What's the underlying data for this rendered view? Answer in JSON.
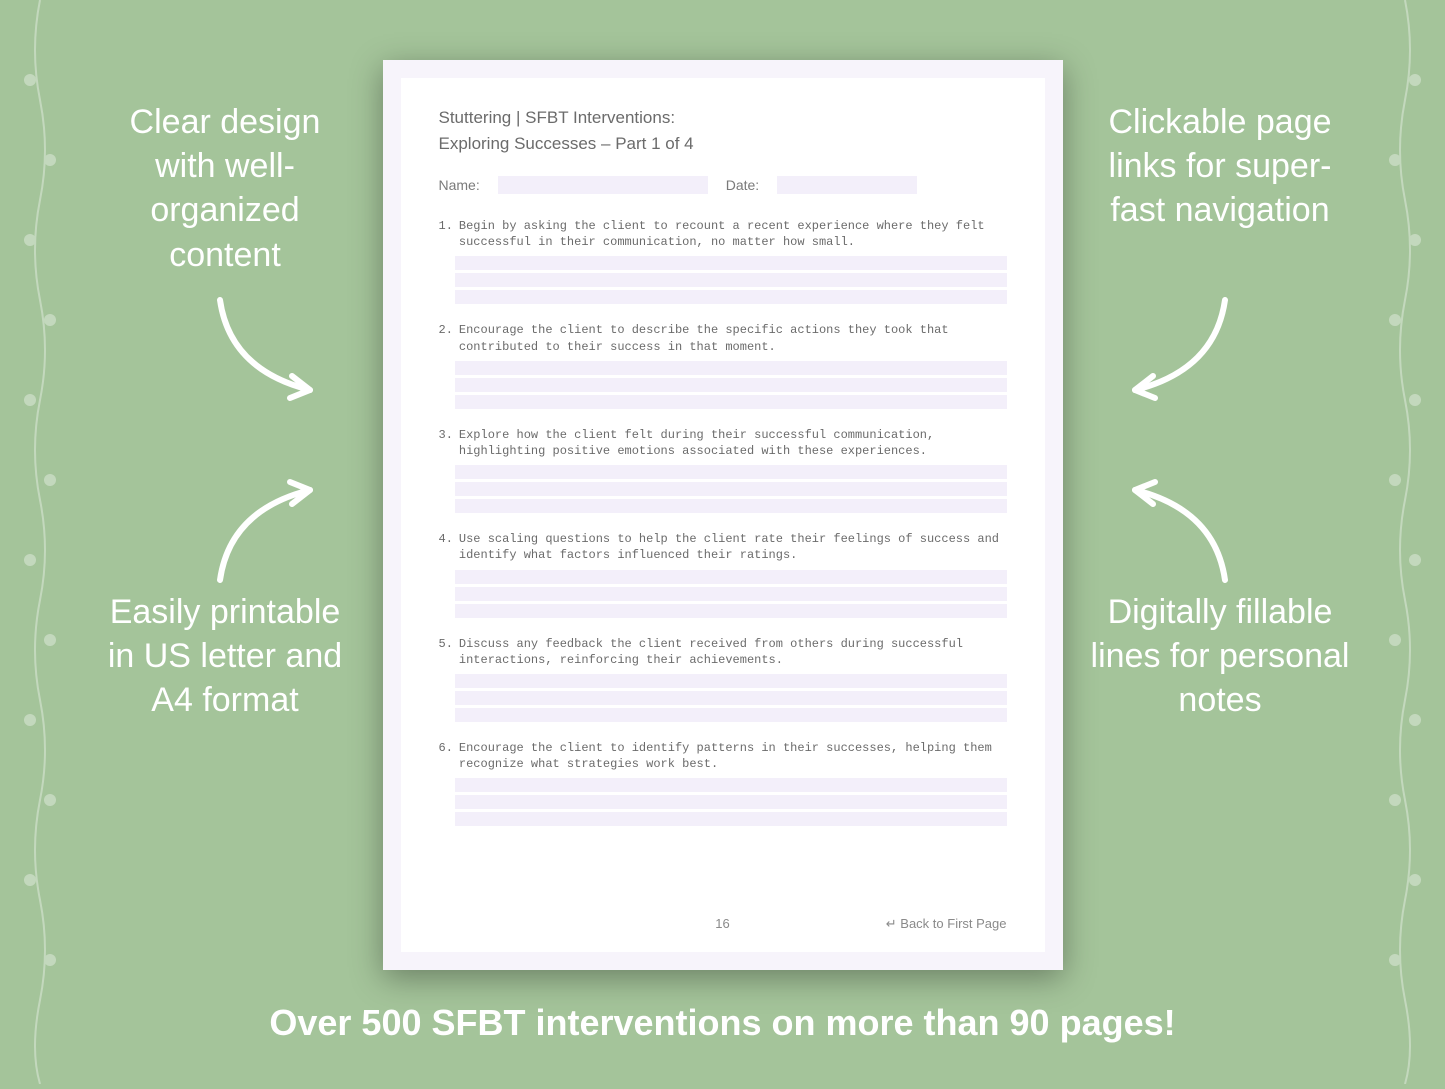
{
  "background_color": "#a4c49a",
  "vine_color": "#ffffff",
  "vine_opacity": 0.35,
  "callouts": {
    "top_left": "Clear design with well-organized content",
    "top_right": "Clickable page links for super-fast navigation",
    "bottom_left": "Easily printable in US letter and A4 format",
    "bottom_right": "Digitally fillable lines for personal notes",
    "color": "#ffffff",
    "fontsize": 34
  },
  "arrows": {
    "stroke": "#ffffff",
    "stroke_width": 6
  },
  "bottom_banner": {
    "text": "Over 500 SFBT interventions on more than 90 pages!",
    "color": "#ffffff",
    "fontsize": 36
  },
  "document": {
    "page_bg": "#f7f4fb",
    "inner_bg": "#ffffff",
    "fill_line_bg": "#f3effa",
    "header": "Stuttering | SFBT Interventions:",
    "subheader": "Exploring Successes – Part 1 of 4",
    "name_label": "Name:",
    "date_label": "Date:",
    "questions": [
      {
        "num": "1.",
        "text": "Begin by asking the client to recount a recent experience where they felt successful in their communication, no matter how small."
      },
      {
        "num": "2.",
        "text": "Encourage the client to describe the specific actions they took that contributed to their success in that moment."
      },
      {
        "num": "3.",
        "text": "Explore how the client felt during their successful communication, highlighting positive emotions associated with these experiences."
      },
      {
        "num": "4.",
        "text": "Use scaling questions to help the client rate their feelings of success and identify what factors influenced their ratings."
      },
      {
        "num": "5.",
        "text": "Discuss any feedback the client received from others during successful interactions, reinforcing their achievements."
      },
      {
        "num": "6.",
        "text": "Encourage the client to identify patterns in their successes, helping them recognize what strategies work best."
      }
    ],
    "lines_per_question": 3,
    "page_number": "16",
    "back_link": "↵ Back to First Page",
    "text_color": "#6b6b6b",
    "mono_font": "Courier New"
  }
}
